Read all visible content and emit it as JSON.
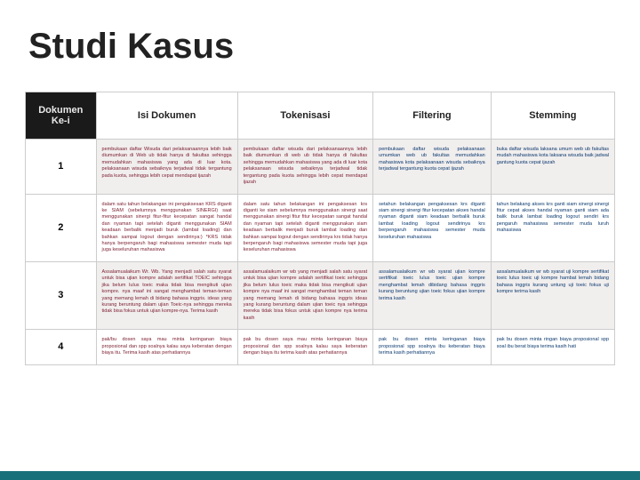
{
  "title": "Studi Kasus",
  "colors": {
    "header_dark_bg": "#1a1a1a",
    "header_dark_fg": "#e9e9e9",
    "header_light_bg": "#ffffff",
    "header_light_fg": "#222222",
    "band_bg": "#f1eeee",
    "maroon_text": "#7a1c2e",
    "blue_text": "#0b3a6f",
    "footer_accent": "#18707a",
    "border": "#cccccc"
  },
  "table": {
    "columns": [
      {
        "label": "Dokumen Ke-i",
        "style": "dark",
        "width_pct": 12
      },
      {
        "label": "Isi Dokumen",
        "style": "light",
        "width_pct": 24
      },
      {
        "label": "Tokenisasi",
        "style": "light",
        "width_pct": 23
      },
      {
        "label": "Filtering",
        "style": "light",
        "width_pct": 20
      },
      {
        "label": "Stemming",
        "style": "light",
        "width_pct": 21
      }
    ],
    "rows": [
      {
        "num": "1",
        "isi": "pembukaan daftar Wisuda dari pelaksanaannya lebih baik diumumkan di Web ub tidak hanya di fakultas sehingga memudahkan mahasiswa yang ada di luar kota. pelaksanaan wisuda sebaiknya terjadwal tidak tergantung pada kuota, sehingga lebih cepat mendapat ijazah",
        "tok": "pembukaan daftar wisuda dari pelaksanaannya lebih baik diumumkan di web ub tidak hanya di fakultas sehingga memudahkan mahasiswa yang ada di luar kota pelaksanaan wisuda sebaiknya terjadwal tidak tergantung pada kuota sehingga lebih cepat mendapat ijazah",
        "fil": "pembukaan daftar wisuda pelaksanaan umumkan web ub fakultas memudahkan mahasiswa kota pelaksanaan wisuda sebaiknya terjadwal tergantung kuota cepat ijazah",
        "stem": "buka daftar wisuda laksana umum web ub fakultas mudah mahasiswa kota laksana wisuda baik jadwal gantung kuota cepat ijazah"
      },
      {
        "num": "2",
        "isi": "dalam satu tahun belakangan ini pengaksesan KRS diganti ke SIAM (sebelumnya menggunakan SINERGI) saat menggunakan sinergi fitur-fitur kecepatan sangat handal dan nyaman tapi setelah diganti menggunakan SIAM keadaan berbalik menjadi buruk (lambat loading) dan bahkan sampai logout dengan sendirinya:) *KRS tidak hanya berpengaruh bagi mahasiswa semester muda tapi juga keseluruhan mahasiswa",
        "tok": "dalam satu tahun belakangan ini pengaksesan krs diganti ke siam sebelumnya menggunakan sinergi saat menggunakan sinergi fitur fitur kecepatan sangat handal dan nyaman tapi setelah diganti menggunakan siam keadaan berbalik menjadi buruk lambat loading dan bahkan sampai logout dengan sendirinya krs tidak hanya berpengaruh bagi mahasiswa semester muda tapi juga keseluruhan mahasiswa",
        "fil": "setahun belakangan pengaksesan krs diganti siam sinergi sinergi fitur kecepatan akses handal nyaman diganti siam keadaan berbalik buruk lambat loading logout sendirinya krs berpengaruh mahasiswa semester muda keseluruhan mahasiswa",
        "stem": "tahun belakang akses krs ganti siam sinergi sinergi fitur cepat akses handal nyaman ganti siam ada balik buruk lambat loading logout sendiri krs pengaruh mahasiswa semester muda luruh mahasiswa"
      },
      {
        "num": "3",
        "isi": "Assalamualaikum Wr. Wb. Yang menjadi salah satu syarat untuk bisa ujian kompre adalah sertifikat TOEIC sehingga jika belum lulus toeic maka tidak bisa mengikuti ujian kompre. nya maaf ini sangat menghambat teman-teman yang memang lemah di bidang bahasa inggris. ideas yang kurang beruntung dalam ujian Toeic-nya sehingga mereka tidak bisa fokus untuk ujian kompre-nya. Terima kasih",
        "tok": "assalamualaikum wr wb yang menjadi salah satu syarat untuk bisa ujian kompre adalah sertifikat toeic sehingga jika belum lulus toeic maka tidak bisa mengikuti ujian kompre nya maaf ini sangat menghambat teman teman yang memang lemah di bidang bahasa inggris ideas yang kurang beruntung dalam ujian toeic nya sehingga mereka tidak bisa fokus untuk ujian kompre nya terima kasih",
        "fil": "assalamualaikum wr wb syarat ujian kompre sertifikat toeic lulus toeic ujian kompre menghambat lemah dibidang bahasa inggris kurang beruntung ujian toeic fokus ujian kompre terima kasih",
        "stem": "assalamualaikum wr wb syarat uji kompre sertifikat toeic lulus toeic uji kompre hambat lemah bidang bahasa inggris kurang untung uji toeic fokus uji kompre terima kasih"
      },
      {
        "num": "4",
        "isi": "pak/bu dosen saya mau minta keringanan biaya proposional dan spp soalnya kalau saya keberatan dengan biaya itu. Terima kasih atas perhatiannya",
        "tok": "pak bu dosen saya mau minta keringanan biaya proposional dan spp soalnya kalau saya keberatan dengan biaya itu terima kasih atas perhatiannya",
        "fil": "pak bu dosen minta keringanan biaya proposional spp soalnya ibu keberatan biaya terima kasih perhatiannya",
        "stem": "pak bu dosen minta ringan biaya proposional spp soal ibu berat biaya terima kasih hati"
      }
    ]
  }
}
